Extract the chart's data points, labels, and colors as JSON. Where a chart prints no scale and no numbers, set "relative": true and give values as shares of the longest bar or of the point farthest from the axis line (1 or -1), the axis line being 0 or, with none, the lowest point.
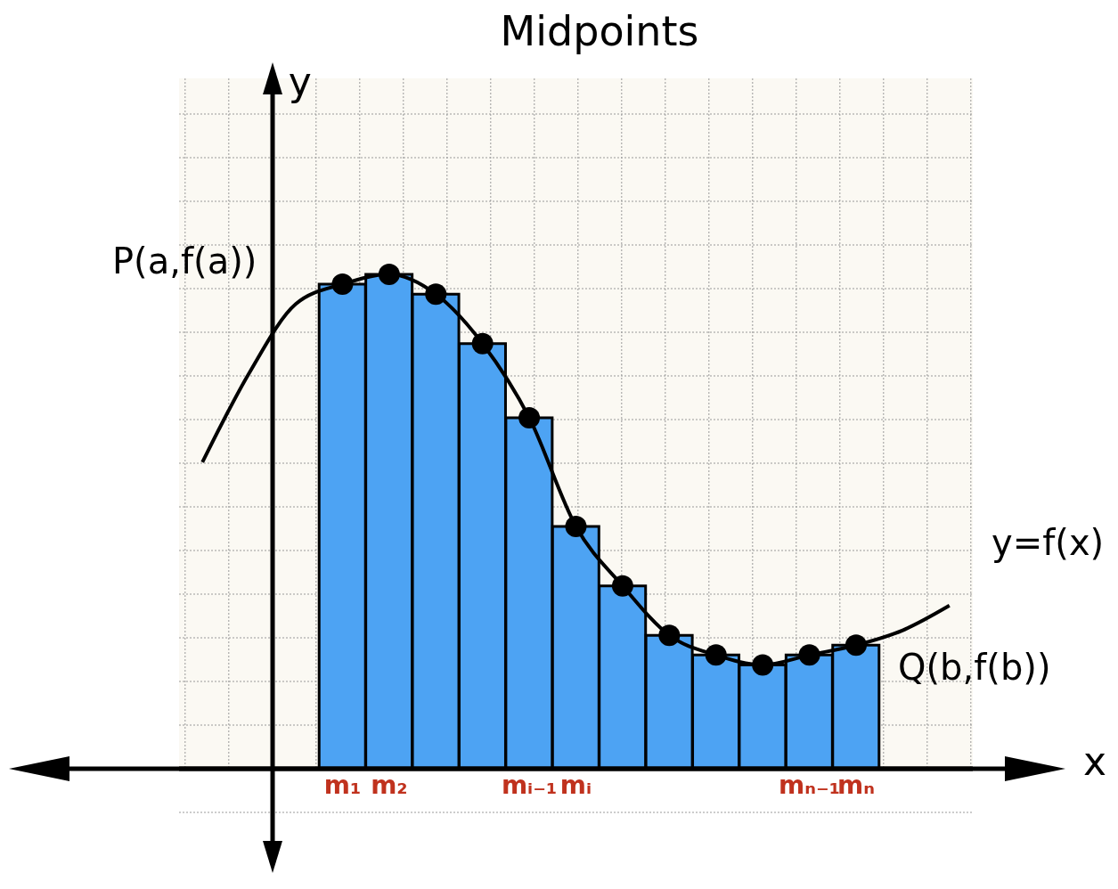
{
  "chart_data": {
    "type": "bar",
    "title": "Midpoints",
    "xlabel": "x",
    "ylabel": "y",
    "relative": true,
    "grid": true,
    "legend": false,
    "categories": [
      null,
      null,
      null,
      "m₁",
      "m₂",
      null,
      null,
      "mᵢ₋₁",
      "mᵢ",
      null,
      null,
      null,
      null,
      "mₙ₋₁",
      "mₙ",
      null,
      null
    ],
    "series": [
      {
        "color": "#4da3f3",
        "values": [
          null,
          null,
          null,
          0.98,
          1,
          0.96,
          0.86,
          0.71,
          0.49,
          0.37,
          0.27,
          0.23,
          0.21,
          0.23,
          0.25,
          null,
          null
        ]
      },
      {
        "type": "line",
        "color": "#000000",
        "values": [
          0.62,
          0.8,
          0.94,
          0.98,
          1,
          0.96,
          0.86,
          0.71,
          0.49,
          0.37,
          0.27,
          0.23,
          0.21,
          0.23,
          0.25,
          0.28,
          0.33
        ]
      },
      {
        "type": "scatter",
        "color": "#000000",
        "marker": "circle",
        "values": [
          null,
          null,
          null,
          0.98,
          1,
          0.96,
          0.86,
          0.71,
          0.49,
          0.37,
          0.27,
          0.23,
          0.21,
          0.23,
          0.25,
          null,
          null
        ]
      }
    ],
    "annotations": [
      "P(a,f(a))",
      "Q(b,f(b))",
      "y=f(x)"
    ]
  }
}
